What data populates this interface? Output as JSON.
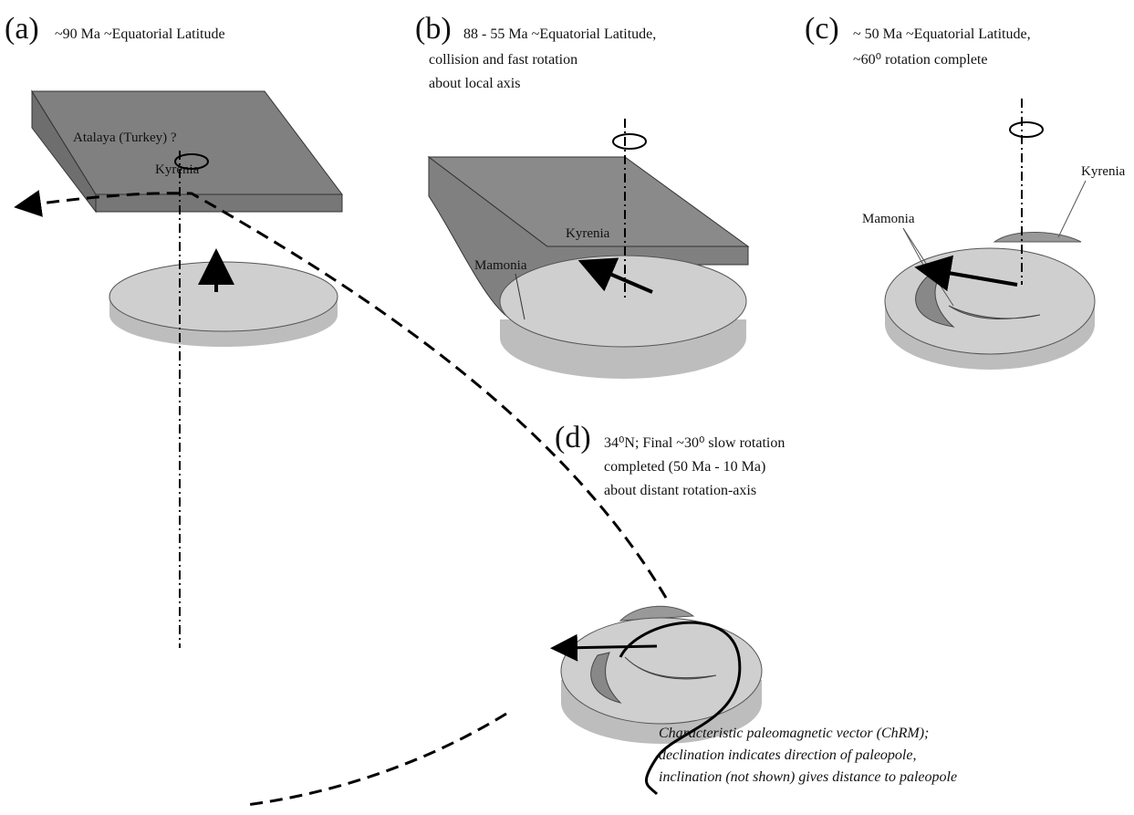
{
  "panels": [
    {
      "label": "(a)",
      "caption": [
        "~90 Ma  ~Equatorial Latitude"
      ],
      "labels": [
        "Atalaya (Turkey) ?",
        "Kyrenia"
      ]
    },
    {
      "label": "(b)",
      "caption": [
        "88 - 55 Ma  ~Equatorial Latitude,",
        "collision and fast rotation",
        "about local axis"
      ],
      "labels": [
        "Mamonia",
        "Kyrenia"
      ]
    },
    {
      "label": "(c)",
      "caption": [
        "~ 50 Ma  ~Equatorial Latitude,",
        "~60⁰ rotation complete"
      ],
      "labels": [
        "Kyrenia",
        "Mamonia"
      ]
    },
    {
      "label": "(d)",
      "caption": [
        "34⁰N;  Final ~30⁰ slow rotation",
        "completed  (50 Ma - 10 Ma)",
        "about distant rotation-axis"
      ],
      "labels": []
    }
  ],
  "note": [
    "Characteristic paleomagnetic vector (ChRM);",
    "declination indicates direction of paleopole,",
    "inclination (not shown) gives distance to paleopole"
  ]
}
